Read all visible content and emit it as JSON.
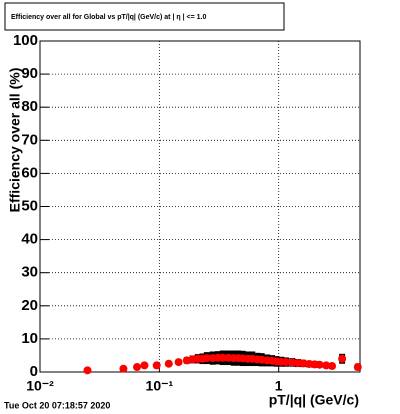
{
  "chart_data": {
    "type": "scatter",
    "title": "Efficiency over all for Global vs pT/|q| (GeV/c) at | η | <= 1.0",
    "x_label": "pT/|q| (GeV/c)",
    "y_label": "Efficiency over all (%)",
    "footer": "Tue Oct 20 07:18:57 2020",
    "x_log": true,
    "grid": true,
    "xlim": [
      0.01,
      4.8
    ],
    "ylim": [
      0,
      100
    ],
    "xticks": [
      {
        "value": 0.01,
        "label": "10⁻²"
      },
      {
        "value": 0.1,
        "label": "10⁻¹"
      },
      1
    ],
    "yticks": [
      0,
      10,
      20,
      30,
      40,
      50,
      60,
      70,
      80,
      90,
      100
    ],
    "series": [
      {
        "color": "#ff0000",
        "error_color": "#000000",
        "x": [
          0.025,
          0.05,
          0.065,
          0.075,
          0.095,
          0.12,
          0.145,
          0.17,
          0.19,
          0.21,
          0.23,
          0.25,
          0.28,
          0.31,
          0.34,
          0.38,
          0.42,
          0.46,
          0.5,
          0.55,
          0.6,
          0.66,
          0.72,
          0.8,
          0.88,
          0.96,
          1.05,
          1.15,
          1.3,
          1.45,
          1.6,
          1.8,
          2.0,
          2.2,
          2.5,
          2.8,
          3.4,
          4.6
        ],
        "values": [
          0.5,
          1,
          1.5,
          2,
          2,
          2.5,
          3,
          3.5,
          3.8,
          4,
          4,
          4.2,
          4.2,
          4.3,
          4.3,
          4.3,
          4.2,
          4.2,
          4.1,
          4,
          4,
          3.8,
          3.7,
          3.5,
          3.4,
          3.2,
          3.1,
          3,
          2.9,
          2.7,
          2.6,
          2.4,
          2.3,
          2.2,
          2,
          1.8,
          4,
          1.5
        ],
        "errors": [
          0.3,
          0.4,
          0.5,
          0.5,
          0.6,
          0.7,
          0.8,
          1,
          1.2,
          1.4,
          1.6,
          1.8,
          2,
          2,
          2.2,
          2.2,
          2.3,
          2.3,
          2.3,
          2.2,
          2.2,
          2,
          2,
          1.8,
          1.7,
          1.6,
          1.5,
          1.4,
          1.3,
          1.2,
          1.1,
          1,
          1,
          0.9,
          0.8,
          0.8,
          1.5,
          1
        ]
      }
    ]
  }
}
